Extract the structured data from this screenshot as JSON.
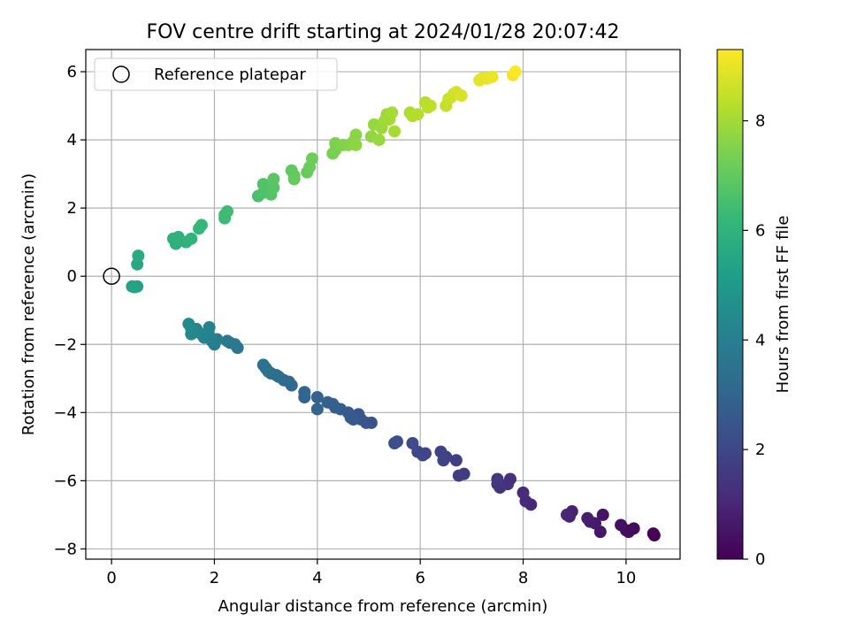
{
  "chart_data": {
    "type": "scatter",
    "title": "FOV centre drift starting at 2024/01/28 20:07:42",
    "xlabel": "Angular distance from reference (arcmin)",
    "ylabel": "Rotation from reference (arcmin)",
    "xlim": [
      -0.5,
      11.05
    ],
    "ylim": [
      -8.3,
      6.65
    ],
    "xticks": [
      0,
      2,
      4,
      6,
      8,
      10
    ],
    "yticks": [
      -8,
      -6,
      -4,
      -2,
      0,
      2,
      4,
      6
    ],
    "grid": true,
    "legend": {
      "entries": [
        "Reference platepar"
      ],
      "position": "top-left"
    },
    "reference_point": {
      "label": "Reference platepar",
      "x": 0,
      "y": 0,
      "marker": "open-circle"
    },
    "colorbar": {
      "label": "Hours from first FF file",
      "colormap": "viridis",
      "range": [
        0,
        9.3
      ],
      "ticks": [
        0,
        2,
        4,
        6,
        8
      ]
    },
    "colormap_stops": [
      "#440154",
      "#482878",
      "#3e4989",
      "#31688e",
      "#26828e",
      "#1f9e89",
      "#35b779",
      "#6ece58",
      "#b5de2b",
      "#fde725"
    ],
    "points": {
      "columns": [
        "x",
        "y",
        "hours"
      ],
      "rows": [
        [
          10.55,
          -7.6,
          0.05
        ],
        [
          10.53,
          -7.55,
          0.1
        ],
        [
          10.15,
          -7.4,
          0.2
        ],
        [
          10.05,
          -7.5,
          0.25
        ],
        [
          10.0,
          -7.45,
          0.3
        ],
        [
          9.9,
          -7.3,
          0.4
        ],
        [
          9.55,
          -7.0,
          0.5
        ],
        [
          9.5,
          -7.5,
          0.55
        ],
        [
          9.4,
          -7.25,
          0.6
        ],
        [
          9.3,
          -7.2,
          0.7
        ],
        [
          9.25,
          -7.1,
          0.75
        ],
        [
          8.95,
          -6.9,
          0.85
        ],
        [
          8.9,
          -7.05,
          0.9
        ],
        [
          8.85,
          -7.0,
          0.95
        ],
        [
          8.15,
          -6.7,
          1.05
        ],
        [
          8.05,
          -6.6,
          1.1
        ],
        [
          8.0,
          -6.35,
          1.15
        ],
        [
          7.75,
          -5.95,
          1.3
        ],
        [
          7.7,
          -6.1,
          1.35
        ],
        [
          7.55,
          -6.2,
          1.4
        ],
        [
          7.5,
          -6.1,
          1.45
        ],
        [
          7.5,
          -5.95,
          1.5
        ],
        [
          6.85,
          -5.8,
          1.65
        ],
        [
          6.75,
          -5.85,
          1.7
        ],
        [
          6.7,
          -5.4,
          1.75
        ],
        [
          6.5,
          -5.3,
          1.8
        ],
        [
          6.4,
          -5.15,
          1.85
        ],
        [
          6.45,
          -5.4,
          1.9
        ],
        [
          6.1,
          -5.2,
          1.95
        ],
        [
          6.05,
          -5.25,
          2.0
        ],
        [
          5.95,
          -5.15,
          2.05
        ],
        [
          5.85,
          -4.9,
          2.1
        ],
        [
          5.55,
          -4.85,
          2.2
        ],
        [
          5.5,
          -4.9,
          2.25
        ],
        [
          5.05,
          -4.3,
          2.35
        ],
        [
          4.95,
          -4.3,
          2.4
        ],
        [
          4.85,
          -4.2,
          2.45
        ],
        [
          4.8,
          -4.05,
          2.5
        ],
        [
          4.7,
          -4.2,
          2.55
        ],
        [
          4.65,
          -4.15,
          2.6
        ],
        [
          4.6,
          -4.0,
          2.65
        ],
        [
          4.45,
          -3.9,
          2.7
        ],
        [
          4.35,
          -3.85,
          2.75
        ],
        [
          4.3,
          -3.75,
          2.8
        ],
        [
          4.2,
          -3.7,
          2.85
        ],
        [
          4.0,
          -3.55,
          2.9
        ],
        [
          4.0,
          -3.9,
          2.95
        ],
        [
          3.75,
          -3.55,
          3.0
        ],
        [
          3.75,
          -3.4,
          3.05
        ],
        [
          3.5,
          -3.2,
          3.1
        ],
        [
          3.45,
          -3.1,
          3.15
        ],
        [
          3.35,
          -3.05,
          3.2
        ],
        [
          3.25,
          -2.95,
          3.25
        ],
        [
          3.2,
          -2.9,
          3.3
        ],
        [
          3.1,
          -2.85,
          3.35
        ],
        [
          3.05,
          -2.8,
          3.4
        ],
        [
          3.0,
          -2.7,
          3.45
        ],
        [
          2.95,
          -2.6,
          3.5
        ],
        [
          2.45,
          -2.1,
          3.65
        ],
        [
          2.4,
          -2.0,
          3.7
        ],
        [
          2.3,
          -1.95,
          3.75
        ],
        [
          2.25,
          -1.9,
          3.8
        ],
        [
          2.05,
          -1.85,
          3.9
        ],
        [
          2.0,
          -2.0,
          3.95
        ],
        [
          1.95,
          -1.9,
          4.0
        ],
        [
          1.9,
          -1.75,
          4.05
        ],
        [
          1.9,
          -1.5,
          4.1
        ],
        [
          1.8,
          -1.8,
          4.15
        ],
        [
          1.75,
          -1.7,
          4.2
        ],
        [
          1.65,
          -1.55,
          4.25
        ],
        [
          1.6,
          -1.65,
          4.3
        ],
        [
          1.55,
          -1.7,
          4.35
        ],
        [
          1.55,
          -1.55,
          4.4
        ],
        [
          1.5,
          -1.4,
          4.45
        ],
        [
          0.5,
          -0.3,
          5.3
        ],
        [
          0.45,
          -0.32,
          5.35
        ],
        [
          0.4,
          -0.3,
          5.4
        ],
        [
          0.5,
          0.35,
          5.6
        ],
        [
          0.52,
          0.6,
          5.65
        ],
        [
          1.2,
          1.1,
          5.85
        ],
        [
          1.25,
          0.95,
          5.9
        ],
        [
          1.3,
          1.15,
          5.95
        ],
        [
          1.45,
          1.0,
          6.0
        ],
        [
          1.55,
          1.1,
          6.05
        ],
        [
          1.7,
          1.4,
          6.1
        ],
        [
          1.75,
          1.5,
          6.15
        ],
        [
          2.2,
          1.7,
          6.3
        ],
        [
          2.2,
          1.8,
          6.35
        ],
        [
          2.25,
          1.9,
          6.4
        ],
        [
          2.85,
          2.35,
          6.6
        ],
        [
          2.95,
          2.45,
          6.65
        ],
        [
          2.95,
          2.7,
          6.7
        ],
        [
          3.1,
          2.4,
          6.75
        ],
        [
          3.15,
          2.6,
          6.8
        ],
        [
          3.15,
          2.85,
          6.85
        ],
        [
          3.5,
          3.1,
          6.95
        ],
        [
          3.55,
          2.95,
          7.0
        ],
        [
          3.55,
          2.85,
          7.05
        ],
        [
          3.8,
          3.05,
          7.1
        ],
        [
          3.85,
          3.2,
          7.15
        ],
        [
          3.9,
          3.45,
          7.2
        ],
        [
          4.3,
          3.6,
          7.35
        ],
        [
          4.35,
          3.7,
          7.4
        ],
        [
          4.35,
          3.9,
          7.45
        ],
        [
          4.5,
          3.85,
          7.5
        ],
        [
          4.6,
          3.85,
          7.55
        ],
        [
          4.7,
          3.95,
          7.6
        ],
        [
          4.75,
          4.15,
          7.65
        ],
        [
          4.75,
          3.85,
          7.7
        ],
        [
          5.05,
          4.1,
          7.75
        ],
        [
          5.1,
          4.45,
          7.8
        ],
        [
          5.2,
          4.0,
          7.85
        ],
        [
          5.25,
          4.35,
          7.9
        ],
        [
          5.3,
          4.55,
          7.95
        ],
        [
          5.35,
          4.75,
          7.95
        ],
        [
          5.4,
          4.6,
          8.0
        ],
        [
          5.45,
          4.8,
          8.05
        ],
        [
          5.5,
          4.25,
          8.05
        ],
        [
          5.8,
          4.8,
          8.15
        ],
        [
          5.85,
          4.7,
          8.2
        ],
        [
          5.95,
          4.75,
          8.25
        ],
        [
          6.1,
          5.1,
          8.3
        ],
        [
          6.15,
          4.95,
          8.35
        ],
        [
          6.2,
          5.0,
          8.4
        ],
        [
          6.5,
          5.0,
          8.5
        ],
        [
          6.55,
          5.2,
          8.55
        ],
        [
          6.6,
          5.25,
          8.6
        ],
        [
          6.65,
          5.35,
          8.65
        ],
        [
          6.7,
          5.4,
          8.7
        ],
        [
          6.8,
          5.3,
          8.75
        ],
        [
          7.15,
          5.75,
          8.9
        ],
        [
          7.2,
          5.8,
          8.95
        ],
        [
          7.3,
          5.8,
          9.0
        ],
        [
          7.4,
          5.85,
          9.05
        ],
        [
          7.8,
          5.9,
          9.15
        ],
        [
          7.85,
          6.0,
          9.25
        ]
      ]
    }
  }
}
